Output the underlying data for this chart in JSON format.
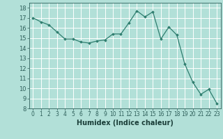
{
  "x": [
    0,
    1,
    2,
    3,
    4,
    5,
    6,
    7,
    8,
    9,
    10,
    11,
    12,
    13,
    14,
    15,
    16,
    17,
    18,
    19,
    20,
    21,
    22,
    23
  ],
  "y": [
    17.0,
    16.6,
    16.3,
    15.6,
    14.9,
    14.9,
    14.6,
    14.5,
    14.7,
    14.8,
    15.4,
    15.4,
    16.5,
    17.7,
    17.1,
    17.6,
    14.9,
    16.1,
    15.3,
    12.4,
    10.6,
    9.4,
    9.9,
    8.5
  ],
  "xlabel": "Humidex (Indice chaleur)",
  "ylim": [
    8,
    18.5
  ],
  "xlim": [
    -0.5,
    23.5
  ],
  "yticks": [
    8,
    9,
    10,
    11,
    12,
    13,
    14,
    15,
    16,
    17,
    18
  ],
  "xticks": [
    0,
    1,
    2,
    3,
    4,
    5,
    6,
    7,
    8,
    9,
    10,
    11,
    12,
    13,
    14,
    15,
    16,
    17,
    18,
    19,
    20,
    21,
    22,
    23
  ],
  "line_color": "#2e7d6e",
  "marker": "D",
  "marker_size": 1.8,
  "bg_color": "#b2e0d8",
  "grid_color": "#ffffff",
  "tick_label_color": "#2e5f5a",
  "xlabel_color": "#1a3d38",
  "xlabel_fontsize": 7,
  "ytick_fontsize": 6,
  "xtick_fontsize": 5.5,
  "line_width": 0.9
}
